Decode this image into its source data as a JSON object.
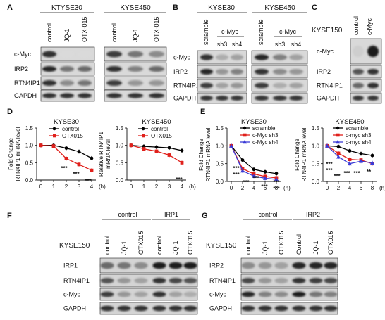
{
  "panels": {
    "A": {
      "letter": "A",
      "cells": [
        "KTYSE30",
        "KYSE450"
      ],
      "lanes": [
        "control",
        "JQ-1",
        "OTX-015"
      ],
      "proteins": [
        "c-Myc",
        "IRP2",
        "RTN4IP1",
        "GAPDH"
      ]
    },
    "B": {
      "letter": "B",
      "cells": [
        "KYSE30",
        "KYSE450"
      ],
      "lanes": [
        "scramble",
        "sh3",
        "sh4"
      ],
      "group": "c-Myc",
      "proteins": [
        "c-Myc",
        "IRP2",
        "RTN4IP1",
        "GAPDH"
      ]
    },
    "C": {
      "letter": "C",
      "cell": "KYSE150",
      "lanes": [
        "control",
        "c-Myc"
      ],
      "proteins": [
        "c-Myc",
        "IRP2",
        "RTN4IP1",
        "GAPDH"
      ]
    },
    "D": {
      "letter": "D"
    },
    "E": {
      "letter": "E"
    },
    "F": {
      "letter": "F",
      "cell": "KYSE150",
      "groups": [
        "control",
        "IRP1"
      ],
      "lanes": [
        "control",
        "JQ-1",
        "OTX015",
        "control",
        "JQ-1",
        "OTX015"
      ],
      "proteins": [
        "IRP1",
        "RTN4IP1",
        "c-Myc",
        "GAPDH"
      ]
    },
    "G": {
      "letter": "G",
      "cell": "KYSE150",
      "groups": [
        "control",
        "IRP2"
      ],
      "lanes": [
        "control",
        "JQ-1",
        "OTX015",
        "Control",
        "JQ-1",
        "OTX015"
      ],
      "proteins": [
        "IRP2",
        "RTN4IP1",
        "c-Myc",
        "GAPDH"
      ]
    }
  },
  "chart_data": [
    {
      "type": "line",
      "panel": "D",
      "title": "KYSE30",
      "ylabel": "Fold Change RTN4IP1 mRNA level",
      "xlabel": "(h)",
      "x": [
        0,
        1,
        2,
        3,
        4
      ],
      "ylim": [
        0,
        1.5
      ],
      "yticks": [
        "0.0",
        "0.5",
        "1.0",
        "1.5"
      ],
      "series": [
        {
          "name": "control",
          "color": "#000000",
          "values": [
            1.0,
            1.0,
            0.92,
            0.82,
            0.63
          ]
        },
        {
          "name": "OTX015",
          "color": "#e0201b",
          "values": [
            1.0,
            0.98,
            0.62,
            0.45,
            0.28
          ]
        }
      ],
      "annotations": [
        "***",
        "***",
        "***"
      ]
    },
    {
      "type": "line",
      "panel": "D",
      "title": "KYSE450",
      "ylabel": "Relative RTN4IP1 mRNA level",
      "xlabel": "(h)",
      "x": [
        0,
        1,
        2,
        3,
        4
      ],
      "ylim": [
        0,
        1.5
      ],
      "yticks": [
        "0.0",
        "0.5",
        "1.0",
        "1.5"
      ],
      "series": [
        {
          "name": "control",
          "color": "#000000",
          "values": [
            1.0,
            0.97,
            0.95,
            0.93,
            0.85
          ]
        },
        {
          "name": "OTX015",
          "color": "#e0201b",
          "values": [
            1.0,
            0.9,
            0.83,
            0.72,
            0.5
          ]
        }
      ],
      "annotations": [
        "***"
      ]
    },
    {
      "type": "line",
      "panel": "E",
      "title": "KYSE30",
      "ylabel": "Fold Change RTN4IP1 mRNA level",
      "xlabel": "(h)",
      "x": [
        0,
        2,
        4,
        6,
        8
      ],
      "ylim": [
        0,
        1.5
      ],
      "yticks": [
        "0.0",
        "0.5",
        "1.0",
        "1.5"
      ],
      "series": [
        {
          "name": "scramble",
          "color": "#000000",
          "values": [
            1.0,
            0.6,
            0.34,
            0.27,
            0.22
          ]
        },
        {
          "name": "c-Myc sh3",
          "color": "#e0201b",
          "values": [
            1.0,
            0.36,
            0.21,
            0.14,
            0.1
          ]
        },
        {
          "name": "c-Myc sh4",
          "color": "#3b3bd6",
          "values": [
            1.0,
            0.3,
            0.15,
            0.09,
            0.06
          ]
        }
      ],
      "annotations": [
        "***",
        "***",
        "***",
        "***",
        "***",
        "***",
        "***"
      ]
    },
    {
      "type": "line",
      "panel": "E",
      "title": "KYSE450",
      "ylabel": "Fold Change RTN4IP1 mRNA level",
      "xlabel": "(h)",
      "x": [
        0,
        2,
        4,
        6,
        8
      ],
      "ylim": [
        0,
        1.5
      ],
      "yticks": [
        "0.0",
        "0.5",
        "1.0",
        "1.5"
      ],
      "series": [
        {
          "name": "scramble",
          "color": "#000000",
          "values": [
            1.0,
            0.98,
            0.86,
            0.78,
            0.73
          ]
        },
        {
          "name": "c-myc sh3",
          "color": "#e0201b",
          "values": [
            1.0,
            0.79,
            0.62,
            0.6,
            0.5
          ]
        },
        {
          "name": "c-myc sh4",
          "color": "#3b3bd6",
          "values": [
            1.0,
            0.69,
            0.5,
            0.57,
            0.52
          ]
        }
      ],
      "annotations": [
        "***",
        "***",
        "***",
        "***",
        "***",
        "**"
      ]
    }
  ]
}
